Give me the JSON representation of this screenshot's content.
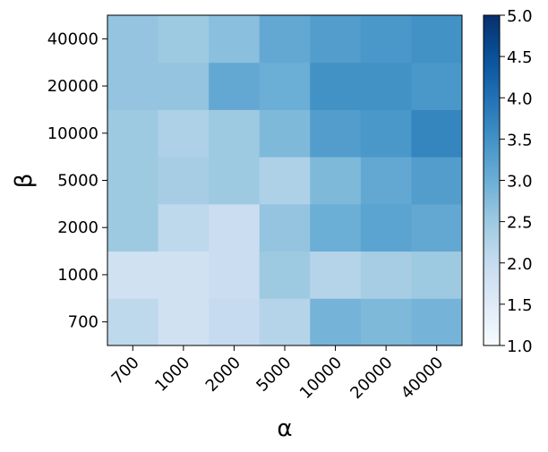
{
  "chart_data": {
    "type": "heatmap",
    "title": "",
    "xlabel": "α",
    "ylabel": "β",
    "x_categories": [
      "700",
      "1000",
      "2000",
      "5000",
      "10000",
      "20000",
      "40000"
    ],
    "y_categories": [
      "700",
      "1000",
      "2000",
      "5000",
      "10000",
      "20000",
      "40000"
    ],
    "values": [
      [
        2.1,
        1.8,
        2.0,
        2.2,
        2.9,
        2.8,
        2.9
      ],
      [
        1.8,
        1.8,
        1.9,
        2.5,
        2.2,
        2.4,
        2.5
      ],
      [
        2.5,
        2.1,
        1.9,
        2.6,
        3.0,
        3.2,
        3.1
      ],
      [
        2.5,
        2.4,
        2.5,
        2.3,
        2.8,
        3.1,
        3.3
      ],
      [
        2.5,
        2.3,
        2.5,
        2.8,
        3.3,
        3.4,
        3.7
      ],
      [
        2.6,
        2.6,
        3.1,
        3.0,
        3.5,
        3.5,
        3.4
      ],
      [
        2.6,
        2.5,
        2.7,
        3.1,
        3.3,
        3.4,
        3.5
      ]
    ],
    "colorbar": {
      "min": 1.0,
      "max": 5.0,
      "ticks": [
        "1.0",
        "1.5",
        "2.0",
        "2.5",
        "3.0",
        "3.5",
        "4.0",
        "4.5",
        "5.0"
      ],
      "colormap": "Blues"
    },
    "grid": false,
    "legend": "none"
  }
}
